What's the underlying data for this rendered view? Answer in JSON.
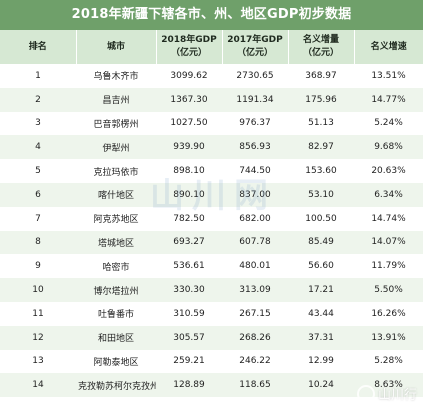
{
  "title": "2018年新疆下辖各市、州、地区GDP初步数据",
  "headers": {
    "rank": "排名",
    "city": "城市",
    "gdp2018": "2018年GDP\n（亿元）",
    "gdp2017": "2017年GDP\n（亿元）",
    "increase": "名义增量\n（亿元）",
    "rate": "名义增速"
  },
  "rows": [
    {
      "rank": "1",
      "city": "乌鲁木齐市",
      "gdp2018": "3099.62",
      "gdp2017": "2730.65",
      "increase": "368.97",
      "rate": "13.51%"
    },
    {
      "rank": "2",
      "city": "昌吉州",
      "gdp2018": "1367.30",
      "gdp2017": "1191.34",
      "increase": "175.96",
      "rate": "14.77%"
    },
    {
      "rank": "3",
      "city": "巴音郭楞州",
      "gdp2018": "1027.50",
      "gdp2017": "976.37",
      "increase": "51.13",
      "rate": "5.24%"
    },
    {
      "rank": "4",
      "city": "伊犁州",
      "gdp2018": "939.90",
      "gdp2017": "856.93",
      "increase": "82.97",
      "rate": "9.68%"
    },
    {
      "rank": "5",
      "city": "克拉玛依市",
      "gdp2018": "898.10",
      "gdp2017": "744.50",
      "increase": "153.60",
      "rate": "20.63%"
    },
    {
      "rank": "6",
      "city": "喀什地区",
      "gdp2018": "890.10",
      "gdp2017": "837.00",
      "increase": "53.10",
      "rate": "6.34%"
    },
    {
      "rank": "7",
      "city": "阿克苏地区",
      "gdp2018": "782.50",
      "gdp2017": "682.00",
      "increase": "100.50",
      "rate": "14.74%"
    },
    {
      "rank": "8",
      "city": "塔城地区",
      "gdp2018": "693.27",
      "gdp2017": "607.78",
      "increase": "85.49",
      "rate": "14.07%"
    },
    {
      "rank": "9",
      "city": "哈密市",
      "gdp2018": "536.61",
      "gdp2017": "480.01",
      "increase": "56.60",
      "rate": "11.79%"
    },
    {
      "rank": "10",
      "city": "博尔塔拉州",
      "gdp2018": "330.30",
      "gdp2017": "313.09",
      "increase": "17.21",
      "rate": "5.50%"
    },
    {
      "rank": "11",
      "city": "吐鲁番市",
      "gdp2018": "310.59",
      "gdp2017": "267.15",
      "increase": "43.44",
      "rate": "16.26%"
    },
    {
      "rank": "12",
      "city": "和田地区",
      "gdp2018": "305.57",
      "gdp2017": "268.26",
      "increase": "37.31",
      "rate": "13.91%"
    },
    {
      "rank": "13",
      "city": "阿勒泰地区",
      "gdp2018": "259.21",
      "gdp2017": "246.22",
      "increase": "12.99",
      "rate": "5.28%"
    },
    {
      "rank": "14",
      "city": "克孜勒苏柯尔克孜州",
      "gdp2018": "128.89",
      "gdp2017": "118.65",
      "increase": "10.24",
      "rate": "8.63%"
    }
  ],
  "watermark_center": "山川网",
  "watermark_corner": "山川行",
  "colors": {
    "title_bg": "#6fa06a",
    "header_bg": "#d6e8d3",
    "row_alt_bg": "#eef5ec"
  }
}
